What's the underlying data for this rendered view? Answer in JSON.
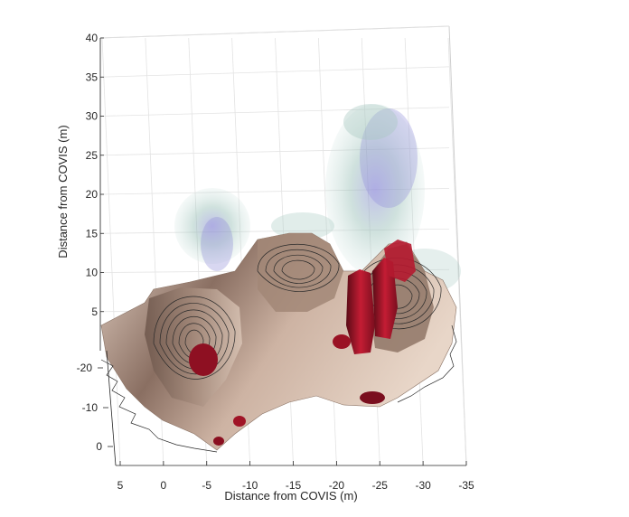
{
  "chart_data": {
    "type": "3d-surface-volume",
    "xlabel": "Distance from COVIS (m)",
    "ylabel": "Distance from COVIS (m)",
    "x_ticks": [
      "5",
      "0",
      "-5",
      "-10",
      "-15",
      "-20",
      "-25",
      "-30",
      "-35"
    ],
    "x_range": [
      5,
      -35
    ],
    "y_ticks": [
      "-20",
      "-10",
      "0"
    ],
    "z_ticks": [
      "5",
      "10",
      "15",
      "20",
      "25",
      "30",
      "35",
      "40"
    ],
    "z_range": [
      0,
      40
    ],
    "grid": true,
    "layers": [
      {
        "kind": "bathymetry-surface",
        "color": "#a88c7c",
        "contours": true
      },
      {
        "kind": "plume-volume-low",
        "color": "#8fb8b0"
      },
      {
        "kind": "plume-volume-high",
        "color": "#8f8cd6"
      },
      {
        "kind": "vent-structures",
        "color": "#b0102a"
      }
    ],
    "plumes": [
      {
        "x": -26,
        "y": -15,
        "z_top": 30
      },
      {
        "x": -10,
        "y": -17,
        "z_top": 18
      }
    ]
  }
}
